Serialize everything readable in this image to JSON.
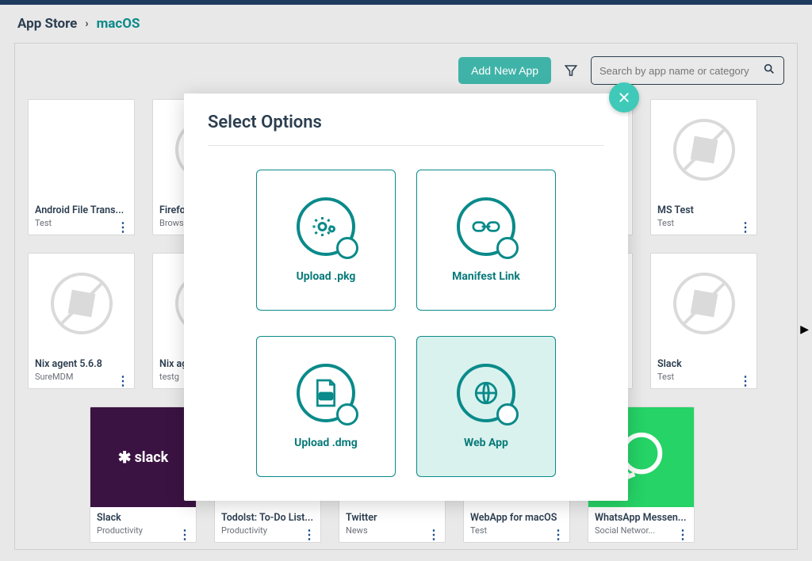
{
  "breadcrumb": {
    "root": "App Store",
    "sep": "›",
    "current": "macOS"
  },
  "toolbar": {
    "add_label": "Add New App",
    "search_placeholder": "Search by app name or category"
  },
  "apps_row1": [
    {
      "title": "Android File Trans...",
      "sub": "Test",
      "variant": "blank"
    },
    {
      "title": "Firefox a",
      "sub": "Browser",
      "variant": "placeholder"
    },
    {
      "title": "",
      "sub": "",
      "variant": "placeholder"
    },
    {
      "title": "",
      "sub": "",
      "variant": "placeholder"
    },
    {
      "title": "",
      "sub": "",
      "variant": "placeholder"
    },
    {
      "title": "MS Test",
      "sub": "Test",
      "variant": "placeholder"
    }
  ],
  "apps_row2": [
    {
      "title": "Nix agent 5.6.8",
      "sub": "SureMDM",
      "variant": "placeholder"
    },
    {
      "title": "Nix age",
      "sub": "testg",
      "variant": "placeholder"
    },
    {
      "title": "",
      "sub": "",
      "variant": "placeholder"
    },
    {
      "title": "",
      "sub": "",
      "variant": "placeholder"
    },
    {
      "title": "",
      "sub": "",
      "variant": "placeholder"
    },
    {
      "title": "Slack",
      "sub": "Test",
      "variant": "placeholder"
    }
  ],
  "apps_row3": [
    {
      "title": "Slack",
      "sub": "Productivity",
      "variant": "slack"
    },
    {
      "title": "Todolst: To-Do List...",
      "sub": "Productivity",
      "variant": "placeholder"
    },
    {
      "title": "Twitter",
      "sub": "News",
      "variant": "placeholder"
    },
    {
      "title": "WebApp for macOS",
      "sub": "Test",
      "variant": "placeholder"
    },
    {
      "title": "WhatsApp Messen...",
      "sub": "Social Networ...",
      "variant": "whatsapp"
    }
  ],
  "modal": {
    "title": "Select Options",
    "options": [
      {
        "label": "Upload .pkg",
        "icon": "gear"
      },
      {
        "label": "Manifest Link",
        "icon": "link"
      },
      {
        "label": "Upload .dmg",
        "icon": "dmg"
      },
      {
        "label": "Web App",
        "icon": "globe",
        "selected": true
      }
    ]
  },
  "colors": {
    "teal": "#0a8a8a",
    "teal_btn": "#3fb3a8",
    "teal_light": "#d9f2ee",
    "text_dark": "#2c3e50"
  }
}
